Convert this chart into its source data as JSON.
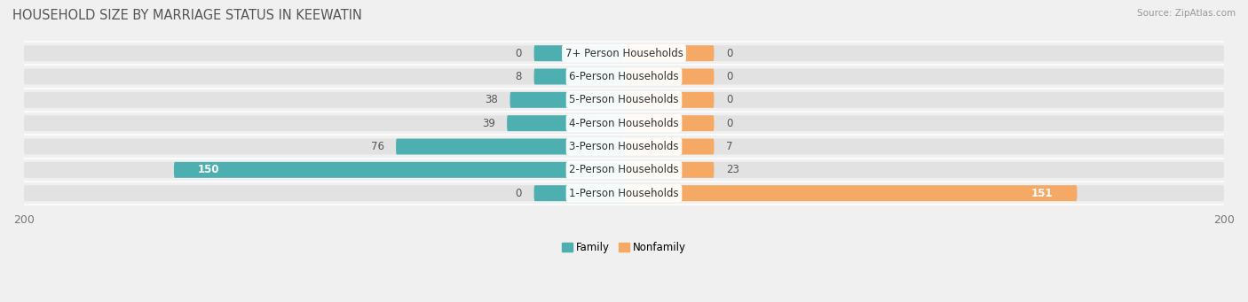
{
  "title": "HOUSEHOLD SIZE BY MARRIAGE STATUS IN KEEWATIN",
  "source": "Source: ZipAtlas.com",
  "categories": [
    "7+ Person Households",
    "6-Person Households",
    "5-Person Households",
    "4-Person Households",
    "3-Person Households",
    "2-Person Households",
    "1-Person Households"
  ],
  "family_values": [
    0,
    8,
    38,
    39,
    76,
    150,
    0
  ],
  "nonfamily_values": [
    0,
    0,
    0,
    0,
    7,
    23,
    151
  ],
  "family_color": "#4DAFB0",
  "nonfamily_color": "#F5A964",
  "xlim": 200,
  "bg_color": "#f0f0f0",
  "bar_bg_color": "#e2e2e2",
  "title_fontsize": 10.5,
  "source_fontsize": 7.5,
  "label_fontsize": 8.5,
  "tick_fontsize": 9,
  "stub_size": 30
}
